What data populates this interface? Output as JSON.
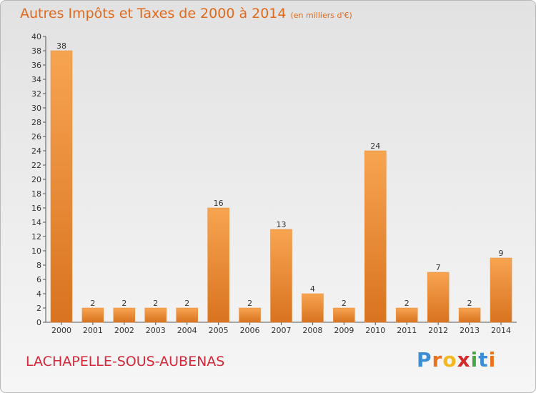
{
  "header": {
    "title": "Autres Impôts et Taxes de 2000 à 2014",
    "subtitle": "(en milliers d'€)"
  },
  "footer": {
    "town": "LACHAPELLE-SOUS-AUBENAS",
    "logo": {
      "letters": [
        "P",
        "r",
        "o",
        "x",
        "i",
        "t",
        "i"
      ],
      "colors": [
        "#3b8ed6",
        "#e9731d",
        "#f2b81f",
        "#d42a2a",
        "#45a842",
        "#3b8ed6",
        "#e9731d"
      ]
    }
  },
  "colors": {
    "bar_top": "#f7a451",
    "bar_bottom": "#d9731f",
    "title": "#e06a1c",
    "town": "#d4283b"
  },
  "chart_data": {
    "type": "bar",
    "title": "Autres Impôts et Taxes de 2000 à 2014",
    "subtitle": "(en milliers d'€)",
    "categories": [
      "2000",
      "2001",
      "2002",
      "2003",
      "2004",
      "2005",
      "2006",
      "2007",
      "2008",
      "2009",
      "2010",
      "2011",
      "2012",
      "2013",
      "2014"
    ],
    "values": [
      38,
      2,
      2,
      2,
      2,
      16,
      2,
      13,
      4,
      2,
      24,
      2,
      7,
      2,
      9
    ],
    "ylim": [
      0,
      40
    ],
    "yticks": [
      0,
      2,
      4,
      6,
      8,
      10,
      12,
      14,
      16,
      18,
      20,
      22,
      24,
      26,
      28,
      30,
      32,
      34,
      36,
      38,
      40
    ],
    "xlabel": "",
    "ylabel": "",
    "data_labels": true,
    "grid": false
  }
}
